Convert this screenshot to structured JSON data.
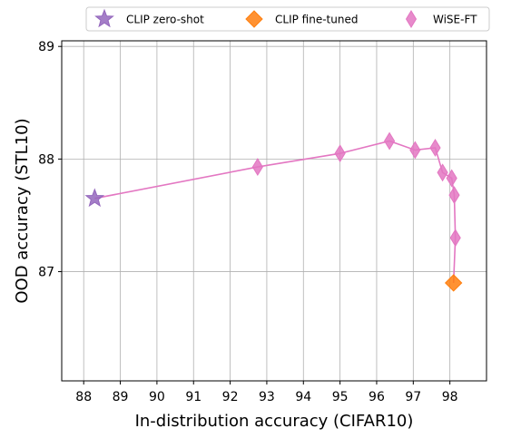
{
  "chart_data": {
    "type": "scatter",
    "title": "",
    "xlabel": "In-distribution accuracy (CIFAR10)",
    "ylabel": "OOD accuracy (STL10)",
    "xlim": [
      87.4,
      99.0
    ],
    "ylim": [
      86.03,
      89.05
    ],
    "x_ticks": [
      "88",
      "89",
      "90",
      "91",
      "92",
      "93",
      "94",
      "95",
      "96",
      "97",
      "98"
    ],
    "y_ticks": [
      "87",
      "88",
      "89"
    ],
    "grid": true,
    "legend_position": "top-center",
    "series": [
      {
        "name": "CLIP zero-shot",
        "marker": "star",
        "color": "#9467bd",
        "points": [
          {
            "x": 88.3,
            "y": 87.65
          }
        ]
      },
      {
        "name": "CLIP fine-tuned",
        "marker": "diamond",
        "color": "#ff7f0e",
        "points": [
          {
            "x": 98.1,
            "y": 86.9
          }
        ]
      },
      {
        "name": "WiSE-FT",
        "marker": "thin_diamond",
        "color": "#e377c2",
        "line": true,
        "points": [
          {
            "x": 88.3,
            "y": 87.65
          },
          {
            "x": 92.75,
            "y": 87.93
          },
          {
            "x": 95.0,
            "y": 88.05
          },
          {
            "x": 96.35,
            "y": 88.16
          },
          {
            "x": 97.05,
            "y": 88.08
          },
          {
            "x": 97.6,
            "y": 88.1
          },
          {
            "x": 97.8,
            "y": 87.88
          },
          {
            "x": 98.05,
            "y": 87.83
          },
          {
            "x": 98.12,
            "y": 87.68
          },
          {
            "x": 98.15,
            "y": 87.3
          },
          {
            "x": 98.1,
            "y": 86.9
          }
        ]
      }
    ]
  }
}
